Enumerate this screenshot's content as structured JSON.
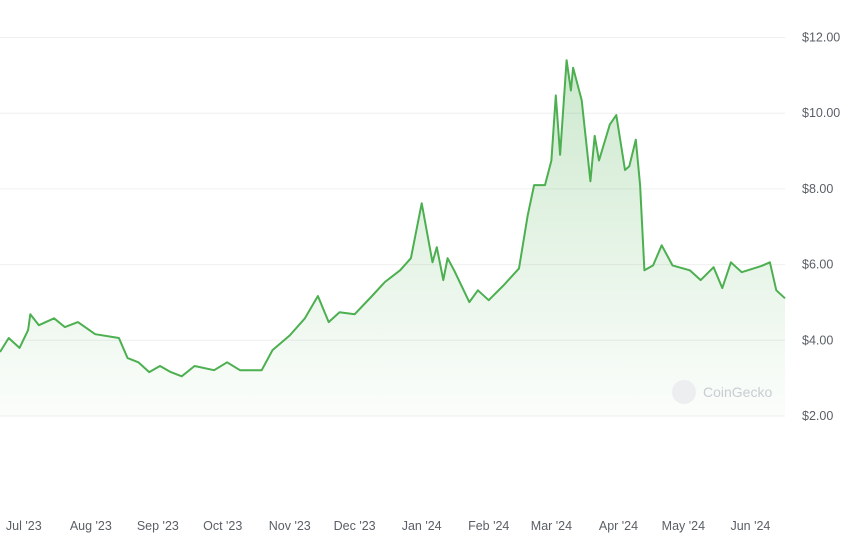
{
  "chart_data": {
    "type": "area",
    "title": "",
    "xlabel": "",
    "ylabel": "",
    "ylim": [
      2,
      12
    ],
    "xlim": [
      "2023-06-20",
      "2024-06-17"
    ],
    "grid": true,
    "y_ticks": [
      "$2.00",
      "$4.00",
      "$6.00",
      "$8.00",
      "$10.00",
      "$12.00"
    ],
    "y_tick_values": [
      2,
      4,
      6,
      8,
      10,
      12
    ],
    "x_ticks": [
      "Jul '23",
      "Aug '23",
      "Sep '23",
      "Oct '23",
      "Nov '23",
      "Dec '23",
      "Jan '24",
      "Feb '24",
      "Mar '24",
      "Apr '24",
      "May '24",
      "Jun '24"
    ],
    "x_tick_dates": [
      "2023-07-01",
      "2023-08-01",
      "2023-09-01",
      "2023-10-01",
      "2023-11-01",
      "2023-12-01",
      "2024-01-01",
      "2024-02-01",
      "2024-03-01",
      "2024-04-01",
      "2024-05-01",
      "2024-06-01"
    ],
    "line_color": "#4caf50",
    "fill_color": "#4caf50",
    "watermark": "CoinGecko",
    "series": [
      {
        "points": [
          [
            "2023-06-20",
            3.69
          ],
          [
            "2023-06-24",
            4.06
          ],
          [
            "2023-06-29",
            3.8
          ],
          [
            "2023-07-03",
            4.27
          ],
          [
            "2023-07-04",
            4.69
          ],
          [
            "2023-07-08",
            4.4
          ],
          [
            "2023-07-15",
            4.58
          ],
          [
            "2023-07-20",
            4.35
          ],
          [
            "2023-07-26",
            4.48
          ],
          [
            "2023-08-03",
            4.16
          ],
          [
            "2023-08-14",
            4.06
          ],
          [
            "2023-08-18",
            3.53
          ],
          [
            "2023-08-23",
            3.42
          ],
          [
            "2023-08-28",
            3.16
          ],
          [
            "2023-09-02",
            3.32
          ],
          [
            "2023-09-07",
            3.16
          ],
          [
            "2023-09-12",
            3.05
          ],
          [
            "2023-09-18",
            3.32
          ],
          [
            "2023-09-27",
            3.21
          ],
          [
            "2023-10-03",
            3.42
          ],
          [
            "2023-10-09",
            3.21
          ],
          [
            "2023-10-19",
            3.21
          ],
          [
            "2023-10-24",
            3.74
          ],
          [
            "2023-11-01",
            4.13
          ],
          [
            "2023-11-08",
            4.58
          ],
          [
            "2023-11-14",
            5.17
          ],
          [
            "2023-11-19",
            4.48
          ],
          [
            "2023-11-24",
            4.74
          ],
          [
            "2023-12-01",
            4.69
          ],
          [
            "2023-12-09",
            5.17
          ],
          [
            "2023-12-15",
            5.54
          ],
          [
            "2023-12-22",
            5.85
          ],
          [
            "2023-12-27",
            6.17
          ],
          [
            "2024-01-01",
            7.62
          ],
          [
            "2024-01-06",
            6.06
          ],
          [
            "2024-01-08",
            6.46
          ],
          [
            "2024-01-11",
            5.59
          ],
          [
            "2024-01-13",
            6.17
          ],
          [
            "2024-01-16",
            5.85
          ],
          [
            "2024-01-23",
            5.01
          ],
          [
            "2024-01-27",
            5.32
          ],
          [
            "2024-02-01",
            5.06
          ],
          [
            "2024-02-08",
            5.46
          ],
          [
            "2024-02-15",
            5.9
          ],
          [
            "2024-02-19",
            7.3
          ],
          [
            "2024-02-22",
            8.1
          ],
          [
            "2024-02-27",
            8.1
          ],
          [
            "2024-03-01",
            8.75
          ],
          [
            "2024-03-03",
            10.47
          ],
          [
            "2024-03-05",
            8.9
          ],
          [
            "2024-03-08",
            11.4
          ],
          [
            "2024-03-10",
            10.6
          ],
          [
            "2024-03-11",
            11.2
          ],
          [
            "2024-03-15",
            10.34
          ],
          [
            "2024-03-19",
            8.2
          ],
          [
            "2024-03-21",
            9.4
          ],
          [
            "2024-03-23",
            8.75
          ],
          [
            "2024-03-28",
            9.7
          ],
          [
            "2024-03-31",
            9.95
          ],
          [
            "2024-04-04",
            8.5
          ],
          [
            "2024-04-06",
            8.6
          ],
          [
            "2024-04-09",
            9.3
          ],
          [
            "2024-04-11",
            8.1
          ],
          [
            "2024-04-13",
            5.85
          ],
          [
            "2024-04-17",
            5.98
          ],
          [
            "2024-04-21",
            6.51
          ],
          [
            "2024-04-26",
            5.98
          ],
          [
            "2024-05-04",
            5.85
          ],
          [
            "2024-05-09",
            5.59
          ],
          [
            "2024-05-15",
            5.93
          ],
          [
            "2024-05-19",
            5.38
          ],
          [
            "2024-05-23",
            6.06
          ],
          [
            "2024-05-28",
            5.8
          ],
          [
            "2024-06-06",
            5.96
          ],
          [
            "2024-06-10",
            6.06
          ],
          [
            "2024-06-13",
            5.32
          ],
          [
            "2024-06-17",
            5.11
          ]
        ]
      }
    ]
  }
}
